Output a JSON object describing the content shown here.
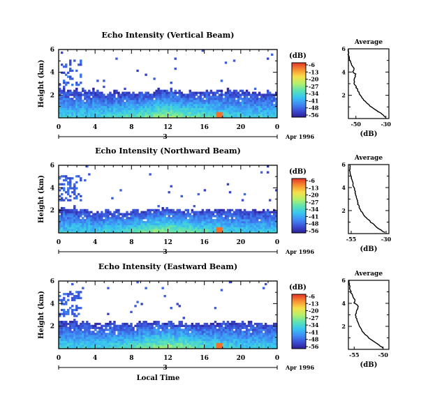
{
  "figure": {
    "xlabel": "Local Time",
    "date_label": "Apr 1996",
    "day_label": "3",
    "colorbar_unit": "(dB)",
    "profile_title": "Average",
    "profile_xlabel": "(dB)"
  },
  "chart_data": [
    {
      "type": "heatmap",
      "title": "Echo Intensity (Vertical Beam)",
      "ylabel": "Height (km)",
      "xlabel": "",
      "x_ticks": [
        "0",
        "4",
        "8",
        "12",
        "16",
        "20",
        "0"
      ],
      "x_range_hours": [
        0,
        24
      ],
      "y_ticks": [
        "2",
        "4",
        "6"
      ],
      "ylim_km": [
        0,
        6
      ],
      "colorbar": {
        "ticks": [
          "-6",
          "-13",
          "-20",
          "-27",
          "-34",
          "-41",
          "-48",
          "-56"
        ],
        "range_db": [
          -56,
          -6
        ],
        "colors": [
          "#2b1b8f",
          "#3a4fd6",
          "#3f8ef5",
          "#38c7f0",
          "#5fe3b0",
          "#b5f06a",
          "#f7e04a",
          "#f79232",
          "#e5372a"
        ]
      },
      "layer_top_km": {
        "x_hours": [
          0,
          2,
          4,
          6,
          8,
          10,
          12,
          13,
          14,
          16,
          18,
          20,
          22,
          24
        ],
        "values": [
          2.6,
          2.5,
          2.4,
          2.3,
          2.2,
          2.3,
          2.5,
          2.4,
          2.3,
          2.4,
          2.5,
          2.4,
          2.3,
          2.3
        ]
      },
      "average_profile": {
        "x_ticks": [
          "-50",
          "-30"
        ],
        "xlim_db": [
          -55,
          -28
        ],
        "heights_km": [
          0.1,
          0.5,
          1.0,
          1.5,
          2.0,
          2.5,
          3.0,
          3.5,
          3.8,
          4.0,
          4.3,
          4.6,
          5.0,
          5.5,
          6.0
        ],
        "values_db": [
          -30,
          -34,
          -40,
          -44,
          -47,
          -49,
          -51,
          -51,
          -50,
          -52,
          -51,
          -53,
          -54,
          -55,
          -55
        ]
      }
    },
    {
      "type": "heatmap",
      "title": "Echo Intensity (Northward Beam)",
      "ylabel": "Height (km)",
      "xlabel": "",
      "x_ticks": [
        "0",
        "4",
        "8",
        "12",
        "16",
        "20",
        "0"
      ],
      "x_range_hours": [
        0,
        24
      ],
      "y_ticks": [
        "2",
        "4",
        "6"
      ],
      "ylim_km": [
        0,
        6
      ],
      "colorbar": {
        "ticks": [
          "-6",
          "-13",
          "-20",
          "-27",
          "-34",
          "-41",
          "-48",
          "-56"
        ],
        "range_db": [
          -56,
          -6
        ],
        "colors": [
          "#2b1b8f",
          "#3a4fd6",
          "#3f8ef5",
          "#38c7f0",
          "#5fe3b0",
          "#b5f06a",
          "#f7e04a",
          "#f79232",
          "#e5372a"
        ]
      },
      "layer_top_km": {
        "x_hours": [
          0,
          2,
          4,
          6,
          8,
          10,
          12,
          13,
          14,
          16,
          18,
          20,
          22,
          24
        ],
        "values": [
          2.3,
          2.1,
          2.0,
          2.0,
          1.9,
          2.0,
          2.1,
          2.0,
          2.0,
          2.0,
          2.1,
          2.0,
          2.0,
          2.0
        ]
      },
      "average_profile": {
        "x_ticks": [
          "-55",
          "-30"
        ],
        "xlim_db": [
          -57,
          -28
        ],
        "heights_km": [
          0.1,
          0.5,
          1.0,
          1.5,
          2.0,
          2.5,
          3.0,
          3.5,
          4.0,
          4.5,
          5.0,
          5.5,
          6.0
        ],
        "values_db": [
          -31,
          -36,
          -41,
          -45,
          -48,
          -50,
          -51,
          -52,
          -53,
          -54,
          -55,
          -56,
          -56
        ]
      }
    },
    {
      "type": "heatmap",
      "title": "Echo Intensity (Eastward Beam)",
      "ylabel": "Height (km)",
      "xlabel": "Local Time",
      "x_ticks": [
        "0",
        "4",
        "8",
        "12",
        "16",
        "20",
        "0"
      ],
      "x_range_hours": [
        0,
        24
      ],
      "y_ticks": [
        "2",
        "4",
        "6"
      ],
      "ylim_km": [
        0,
        6
      ],
      "colorbar": {
        "ticks": [
          "-6",
          "-13",
          "-20",
          "-27",
          "-34",
          "-41",
          "-48",
          "-56"
        ],
        "range_db": [
          -56,
          -6
        ],
        "colors": [
          "#2b1b8f",
          "#3a4fd6",
          "#3f8ef5",
          "#38c7f0",
          "#5fe3b0",
          "#b5f06a",
          "#f7e04a",
          "#f79232",
          "#e5372a"
        ]
      },
      "layer_top_km": {
        "x_hours": [
          0,
          2,
          4,
          6,
          8,
          10,
          12,
          13,
          14,
          16,
          18,
          20,
          22,
          24
        ],
        "values": [
          2.5,
          2.4,
          2.3,
          2.3,
          2.2,
          2.3,
          2.4,
          2.3,
          2.2,
          2.3,
          2.4,
          2.3,
          2.3,
          2.3
        ]
      },
      "average_profile": {
        "x_ticks": [
          "-55",
          "-50"
        ],
        "xlim_db": [
          -56,
          -49
        ],
        "heights_km": [
          0.1,
          0.5,
          1.0,
          1.5,
          2.0,
          2.5,
          3.0,
          3.5,
          3.8,
          4.0,
          4.3,
          4.6,
          5.0,
          5.5,
          6.0
        ],
        "values_db": [
          -50,
          -51,
          -52.5,
          -53.5,
          -54,
          -54.5,
          -54.8,
          -54.5,
          -54.2,
          -55,
          -54.8,
          -55.3,
          -55.6,
          -55.8,
          -55.9
        ]
      }
    }
  ]
}
